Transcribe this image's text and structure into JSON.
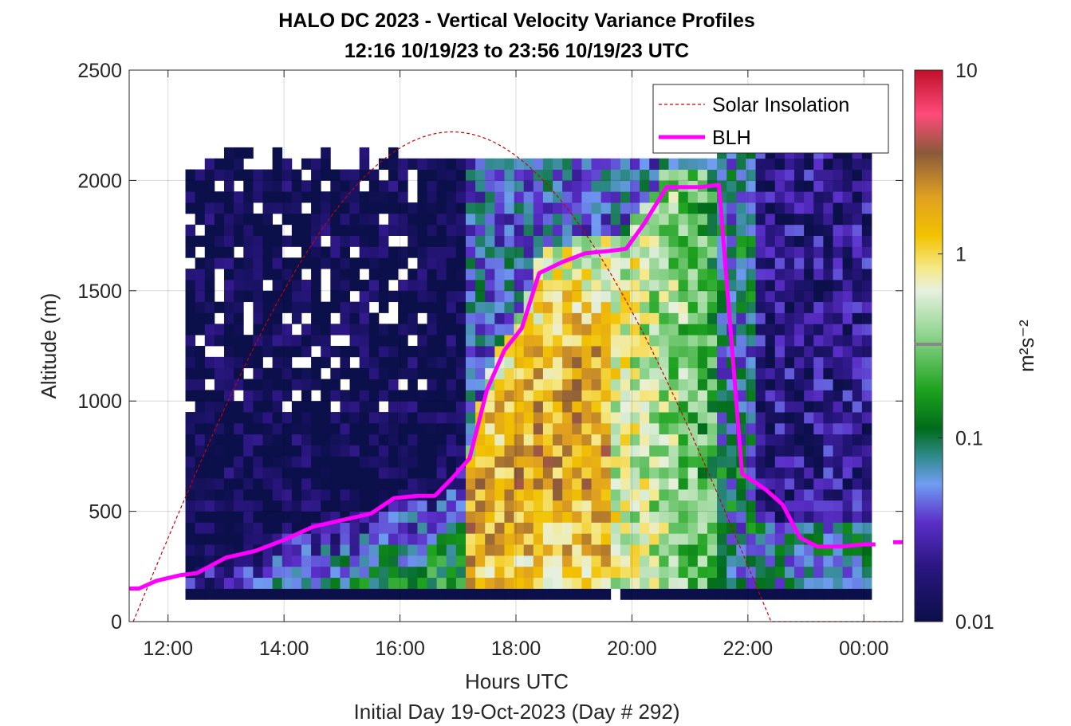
{
  "chart_data": {
    "type": "heatmap",
    "title": "HALO DC 2023 - Vertical Velocity Variance Profiles",
    "subtitle": "12:16 10/19/23 to 23:56 10/19/23  UTC",
    "xlabel": "Hours UTC",
    "xlabel2": "Initial Day 19-Oct-2023 (Day # 292)",
    "ylabel": "Altitude (m)",
    "x_ticks": [
      12,
      14,
      16,
      18,
      20,
      22,
      24
    ],
    "x_tick_labels": [
      "12:00",
      "14:00",
      "16:00",
      "18:00",
      "20:00",
      "22:00",
      "00:00"
    ],
    "y_ticks": [
      0,
      500,
      1000,
      1500,
      2000,
      2500
    ],
    "y_tick_labels": [
      "0",
      "500",
      "1000",
      "1500",
      "2000",
      "2500"
    ],
    "xlim": [
      11.33,
      24.67
    ],
    "ylim": [
      0,
      2500
    ],
    "grid": true,
    "colorbar": {
      "label": "m²s⁻²",
      "scale": "log",
      "range": [
        0.01,
        10
      ],
      "tick_values": [
        0.01,
        0.1,
        1,
        10
      ],
      "tick_labels": [
        "0.01",
        "0.1",
        "1",
        "10"
      ]
    },
    "legend": {
      "placement": "top-right",
      "entries": [
        {
          "label": "Solar Insolation",
          "color": "#cc0000",
          "style": "dashed"
        },
        {
          "label": "BLH",
          "color": "#ff00ff",
          "style": "solid"
        }
      ]
    },
    "solar_insolation": {
      "sunrise_hour": 11.4,
      "sunset_hour": 22.4,
      "peak_hour": 16.9,
      "peak_altitude_m": 2220
    },
    "series": [
      {
        "name": "BLH",
        "color": "#ff00ff",
        "x": [
          11.33,
          11.5,
          11.8,
          12.2,
          12.5,
          13.0,
          13.5,
          14.0,
          14.5,
          15.0,
          15.5,
          15.9,
          16.3,
          16.6,
          16.9,
          17.2,
          17.5,
          17.8,
          18.1,
          18.4,
          18.8,
          19.2,
          19.6,
          19.9,
          20.2,
          20.6,
          21.2,
          21.5,
          21.9,
          22.3,
          22.6,
          22.9,
          23.2,
          23.6,
          24.0,
          24.2
        ],
        "y": [
          150,
          150,
          185,
          210,
          220,
          290,
          320,
          370,
          430,
          460,
          490,
          560,
          570,
          570,
          650,
          740,
          1050,
          1230,
          1330,
          1580,
          1630,
          1670,
          1680,
          1690,
          1800,
          1970,
          1970,
          1980,
          670,
          600,
          530,
          380,
          340,
          340,
          350,
          350
        ]
      },
      {
        "name": "BLH (trailing)",
        "x": [
          24.67
        ],
        "y": [
          360
        ]
      }
    ],
    "heatmap_regions": [
      {
        "description_value": "near-surface low-variance band",
        "x_range": [
          12.3,
          24.0
        ],
        "y_range": [
          100,
          130
        ],
        "value": 0.01
      },
      {
        "description_value": "pre-convective stable layer",
        "x_range": [
          12.3,
          16.3
        ],
        "y_range": [
          700,
          1800
        ],
        "value": 0.01
      },
      {
        "description_value": "daytime convective core",
        "x_range": [
          17.3,
          19.6
        ],
        "y_range": [
          130,
          1400
        ],
        "value": 1.5
      },
      {
        "description_value": "afternoon mixed layer",
        "x_range": [
          19.6,
          21.4
        ],
        "y_range": [
          130,
          2050
        ],
        "value": 0.5
      },
      {
        "description_value": "evening decay",
        "x_range": [
          21.4,
          22.2
        ],
        "y_range": [
          130,
          2150
        ],
        "value": 0.08
      },
      {
        "description_value": "night residual layer",
        "x_range": [
          22.2,
          24.0
        ],
        "y_range": [
          600,
          2150
        ],
        "value": 0.02
      }
    ]
  }
}
